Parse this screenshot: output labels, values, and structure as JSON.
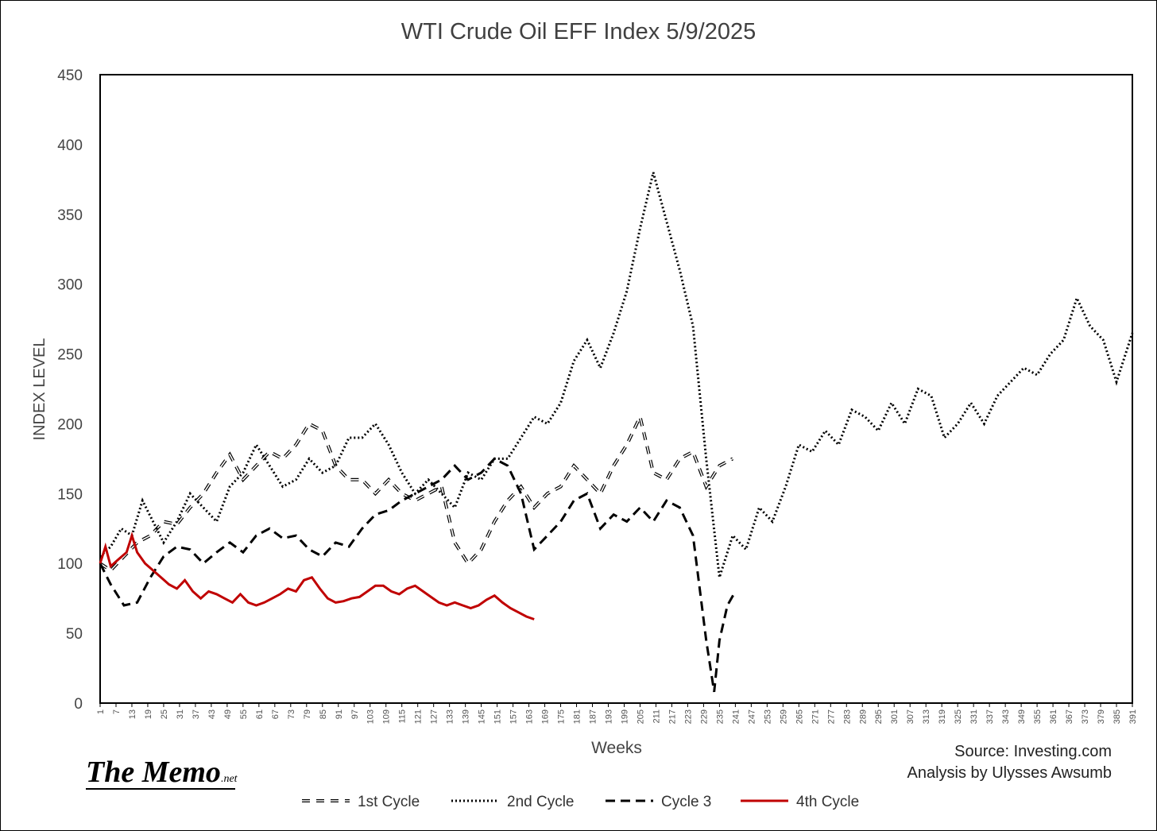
{
  "chart_data": {
    "type": "line",
    "title": "WTI Crude Oil EFF Index 5/9/2025",
    "xlabel": "Weeks",
    "ylabel": "INDEX LEVEL",
    "ylim": [
      0,
      450
    ],
    "yticks": [
      0,
      50,
      100,
      150,
      200,
      250,
      300,
      350,
      400,
      450
    ],
    "xlim": [
      1,
      391
    ],
    "xticks": [
      1,
      7,
      13,
      19,
      25,
      31,
      37,
      43,
      49,
      55,
      61,
      67,
      73,
      79,
      85,
      91,
      97,
      103,
      109,
      115,
      121,
      127,
      133,
      139,
      145,
      151,
      157,
      163,
      169,
      175,
      181,
      187,
      193,
      199,
      205,
      211,
      217,
      223,
      229,
      235,
      241,
      247,
      253,
      259,
      265,
      271,
      277,
      283,
      289,
      295,
      301,
      307,
      313,
      319,
      325,
      331,
      337,
      343,
      349,
      355,
      361,
      367,
      373,
      379,
      385,
      391
    ],
    "legend_position": "bottom",
    "series": [
      {
        "name": "1st Cycle",
        "style": "long-dash-outline",
        "color": "#000000",
        "x": [
          1,
          5,
          10,
          15,
          20,
          25,
          30,
          35,
          40,
          45,
          50,
          55,
          60,
          65,
          70,
          75,
          80,
          85,
          90,
          95,
          100,
          105,
          110,
          115,
          120,
          125,
          130,
          135,
          140,
          145,
          150,
          155,
          160,
          165,
          170,
          175,
          180,
          185,
          190,
          195,
          200,
          205,
          210,
          215,
          220,
          225,
          230,
          235,
          240
        ],
        "y": [
          100,
          95,
          105,
          115,
          120,
          130,
          128,
          140,
          150,
          165,
          178,
          160,
          170,
          180,
          175,
          185,
          200,
          195,
          170,
          160,
          160,
          150,
          160,
          150,
          145,
          150,
          155,
          115,
          100,
          110,
          130,
          145,
          155,
          140,
          150,
          155,
          170,
          160,
          150,
          170,
          185,
          205,
          165,
          160,
          175,
          180,
          155,
          170,
          175
        ]
      },
      {
        "name": "2nd Cycle",
        "style": "dotted",
        "color": "#000000",
        "x": [
          1,
          5,
          9,
          13,
          17,
          21,
          25,
          30,
          35,
          40,
          45,
          50,
          55,
          60,
          65,
          70,
          75,
          80,
          85,
          90,
          95,
          100,
          105,
          110,
          115,
          120,
          125,
          130,
          135,
          140,
          145,
          150,
          155,
          160,
          165,
          170,
          175,
          180,
          185,
          190,
          195,
          200,
          205,
          210,
          215,
          220,
          225,
          230,
          235,
          240,
          245,
          250,
          255,
          260,
          265,
          270,
          275,
          280,
          285,
          290,
          295,
          300,
          305,
          310,
          315,
          320,
          325,
          330,
          335,
          340,
          345,
          350,
          355,
          360,
          365,
          370,
          375,
          380,
          385,
          391
        ],
        "y": [
          105,
          112,
          125,
          120,
          145,
          130,
          115,
          130,
          150,
          140,
          130,
          155,
          165,
          185,
          170,
          155,
          160,
          175,
          165,
          170,
          190,
          190,
          200,
          185,
          165,
          150,
          160,
          150,
          140,
          165,
          160,
          175,
          175,
          190,
          205,
          200,
          215,
          245,
          260,
          240,
          265,
          295,
          340,
          380,
          345,
          310,
          270,
          175,
          90,
          120,
          110,
          140,
          130,
          155,
          185,
          180,
          195,
          185,
          210,
          205,
          195,
          215,
          200,
          225,
          220,
          190,
          200,
          215,
          200,
          220,
          230,
          240,
          235,
          250,
          260,
          290,
          270,
          260,
          230,
          265
        ]
      },
      {
        "name": "Cycle 3",
        "style": "dashed",
        "color": "#000000",
        "x": [
          1,
          5,
          10,
          15,
          20,
          25,
          30,
          35,
          40,
          45,
          50,
          55,
          60,
          65,
          70,
          75,
          80,
          85,
          90,
          95,
          100,
          105,
          110,
          115,
          120,
          125,
          130,
          135,
          140,
          145,
          150,
          155,
          160,
          165,
          170,
          175,
          180,
          185,
          190,
          195,
          200,
          205,
          210,
          215,
          220,
          225,
          230,
          233,
          235,
          238,
          241
        ],
        "y": [
          100,
          85,
          70,
          72,
          90,
          105,
          112,
          110,
          100,
          108,
          115,
          108,
          120,
          125,
          118,
          120,
          110,
          105,
          115,
          112,
          125,
          135,
          138,
          145,
          150,
          155,
          160,
          170,
          160,
          165,
          175,
          170,
          150,
          110,
          120,
          130,
          145,
          150,
          125,
          135,
          130,
          140,
          130,
          145,
          140,
          120,
          45,
          8,
          45,
          70,
          80
        ]
      },
      {
        "name": "4th Cycle",
        "style": "solid",
        "color": "#C00000",
        "x": [
          1,
          3,
          5,
          8,
          11,
          13,
          15,
          18,
          21,
          24,
          27,
          30,
          33,
          36,
          39,
          42,
          45,
          48,
          51,
          54,
          57,
          60,
          63,
          66,
          69,
          72,
          75,
          78,
          81,
          84,
          87,
          90,
          93,
          96,
          99,
          102,
          105,
          108,
          111,
          114,
          117,
          120,
          123,
          126,
          129,
          132,
          135,
          138,
          141,
          144,
          147,
          150,
          153,
          156,
          159,
          162,
          165
        ],
        "y": [
          100,
          112,
          98,
          103,
          108,
          120,
          108,
          100,
          95,
          90,
          85,
          82,
          88,
          80,
          75,
          80,
          78,
          75,
          72,
          78,
          72,
          70,
          72,
          75,
          78,
          82,
          80,
          88,
          90,
          82,
          75,
          72,
          73,
          75,
          76,
          80,
          84,
          84,
          80,
          78,
          82,
          84,
          80,
          76,
          72,
          70,
          72,
          70,
          68,
          70,
          74,
          77,
          72,
          68,
          65,
          62,
          60
        ]
      }
    ]
  },
  "annotations": {
    "source": "Source: Investing.com",
    "analysis": "Analysis by Ulysses Awsumb",
    "logo_main": "The Memo",
    "logo_suffix": ".net"
  }
}
